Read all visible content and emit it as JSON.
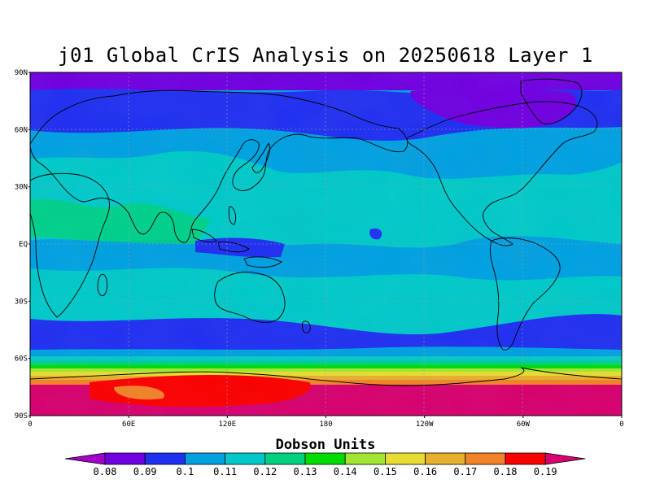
{
  "title": "j01 Global CrIS Analysis on 20250618 Layer 1",
  "map": {
    "lat_labels": [
      "90N",
      "60N",
      "30N",
      "EQ",
      "30S",
      "60S",
      "90S"
    ],
    "lon_labels": [
      "0",
      "60E",
      "120E",
      "180",
      "120W",
      "60W",
      "0"
    ]
  },
  "colorbar": {
    "title": "Dobson Units",
    "levels": [
      "0.08",
      "0.09",
      "0.1",
      "0.11",
      "0.12",
      "0.13",
      "0.14",
      "0.15",
      "0.16",
      "0.17",
      "0.18",
      "0.19"
    ],
    "colors": [
      "#a000c8",
      "#7000e0",
      "#2030f0",
      "#00a0e0",
      "#00c8c8",
      "#00d080",
      "#00dc00",
      "#a0e632",
      "#e6dc32",
      "#e6af2d",
      "#f08228",
      "#fa0000",
      "#d6006e"
    ]
  }
}
